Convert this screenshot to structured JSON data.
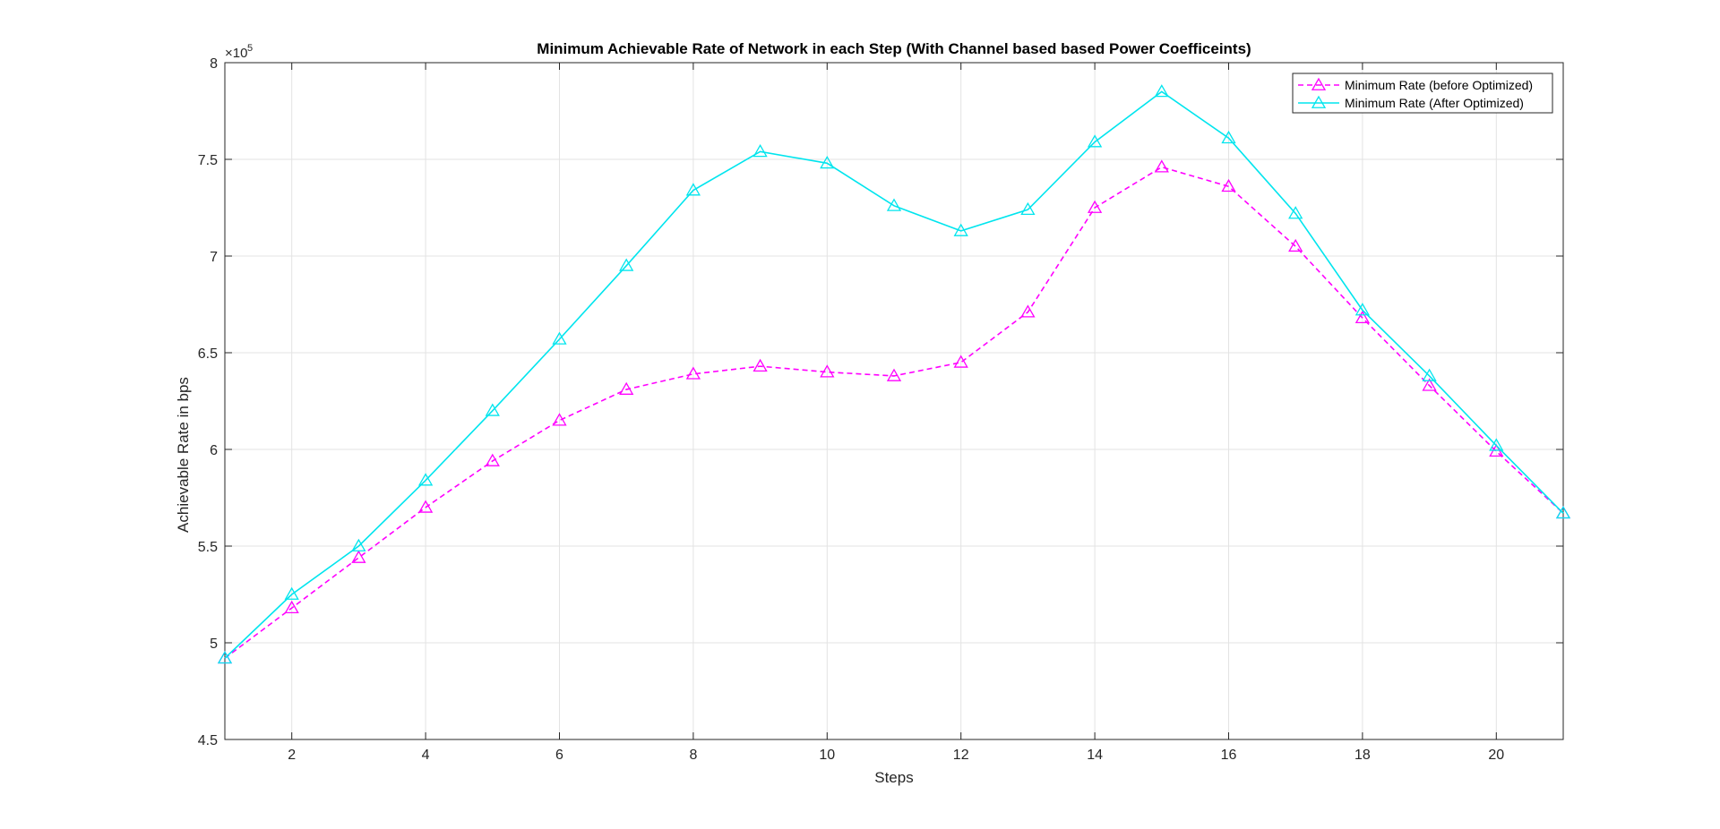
{
  "chart_data": {
    "type": "line",
    "title": "Minimum Achievable Rate of Network in each Step (With Channel based based Power Coefficeints)",
    "xlabel": "Steps",
    "ylabel": "Achievable Rate in bps",
    "y_exponent_base": "×10",
    "y_exponent_power": "5",
    "xlim": [
      1,
      21
    ],
    "ylim": [
      4.5,
      8
    ],
    "x_ticks": [
      2,
      4,
      6,
      8,
      10,
      12,
      14,
      16,
      18,
      20
    ],
    "y_ticks": [
      4.5,
      5,
      5.5,
      6,
      6.5,
      7,
      7.5,
      8
    ],
    "y_tick_labels": [
      "4.5",
      "5",
      "5.5",
      "6",
      "6.5",
      "7",
      "7.5",
      "8"
    ],
    "grid": true,
    "legend_position": "top-right",
    "x": [
      1,
      2,
      3,
      4,
      5,
      6,
      7,
      8,
      9,
      10,
      11,
      12,
      13,
      14,
      15,
      16,
      17,
      18,
      19,
      20,
      21
    ],
    "series": [
      {
        "name": "Minimum Rate (before Optimized)",
        "color": "#ff00ff",
        "line_style": "dashed",
        "marker": "triangle",
        "values": [
          4.92,
          5.18,
          5.44,
          5.7,
          5.94,
          6.15,
          6.31,
          6.39,
          6.43,
          6.4,
          6.38,
          6.45,
          6.71,
          7.25,
          7.46,
          7.36,
          7.05,
          6.68,
          6.33,
          5.99,
          5.67
        ]
      },
      {
        "name": "Minimum Rate (After Optimized)",
        "color": "#00e5ee",
        "line_style": "solid",
        "marker": "triangle",
        "values": [
          4.92,
          5.25,
          5.5,
          5.84,
          6.2,
          6.57,
          6.95,
          7.34,
          7.54,
          7.48,
          7.26,
          7.13,
          7.24,
          7.59,
          7.85,
          7.61,
          7.22,
          6.72,
          6.38,
          6.02,
          5.67
        ]
      }
    ]
  }
}
